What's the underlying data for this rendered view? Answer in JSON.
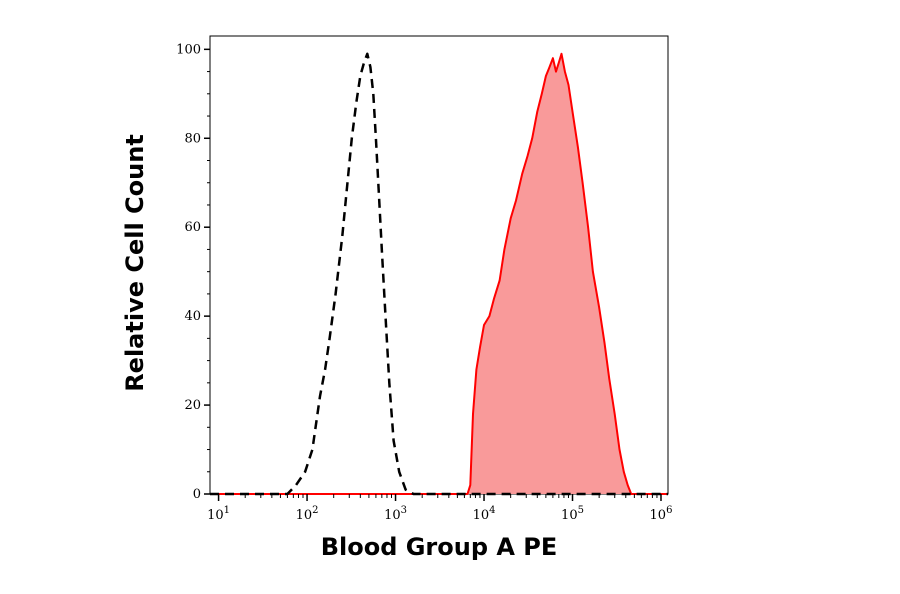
{
  "chart_data": {
    "type": "area",
    "title": "",
    "xlabel": "Blood Group A PE",
    "ylabel": "Relative Cell Count",
    "x_scale": "log",
    "xlim": [
      8,
      1200000
    ],
    "ylim": [
      0,
      103
    ],
    "x_ticks": [
      {
        "value": 10,
        "base": "10",
        "exp": "1"
      },
      {
        "value": 100,
        "base": "10",
        "exp": "2"
      },
      {
        "value": 1000,
        "base": "10",
        "exp": "3"
      },
      {
        "value": 10000,
        "base": "10",
        "exp": "4"
      },
      {
        "value": 100000,
        "base": "10",
        "exp": "5"
      },
      {
        "value": 1000000,
        "base": "10",
        "exp": "6"
      }
    ],
    "y_ticks": [
      "0",
      "20",
      "40",
      "60",
      "80",
      "100"
    ],
    "grid": false,
    "legend": "none",
    "colors": {
      "stained_fill": "#f99a9a",
      "stained_line": "#ff0000",
      "control_line": "#000000"
    },
    "series": [
      {
        "style": "dashed",
        "x": [
          8,
          60,
          75,
          95,
          115,
          140,
          160,
          180,
          210,
          250,
          280,
          320,
          360,
          400,
          440,
          480,
          520,
          560,
          600,
          650,
          700,
          760,
          850,
          950,
          1100,
          1300,
          1600,
          1200000
        ],
        "y": [
          0,
          0,
          2,
          5,
          10,
          22,
          28,
          35,
          45,
          58,
          68,
          80,
          88,
          94,
          97,
          99,
          96,
          90,
          80,
          67,
          55,
          42,
          25,
          12,
          5,
          1,
          0,
          0
        ]
      },
      {
        "style": "filled",
        "x": [
          8,
          6500,
          7000,
          7500,
          8200,
          9000,
          10000,
          11500,
          13000,
          15000,
          17000,
          20000,
          23000,
          27000,
          31000,
          35000,
          40000,
          45000,
          50000,
          55000,
          60000,
          65000,
          70000,
          75000,
          82000,
          90000,
          100000,
          115000,
          130000,
          150000,
          170000,
          200000,
          230000,
          260000,
          300000,
          340000,
          380000,
          420000,
          460000,
          1200000
        ],
        "y": [
          0,
          0,
          2,
          18,
          28,
          33,
          38,
          40,
          44,
          48,
          55,
          62,
          66,
          72,
          76,
          80,
          86,
          90,
          94,
          96,
          98,
          95,
          97,
          99,
          95,
          92,
          86,
          78,
          70,
          60,
          50,
          42,
          34,
          26,
          18,
          10,
          5,
          2,
          0,
          0
        ]
      }
    ]
  }
}
